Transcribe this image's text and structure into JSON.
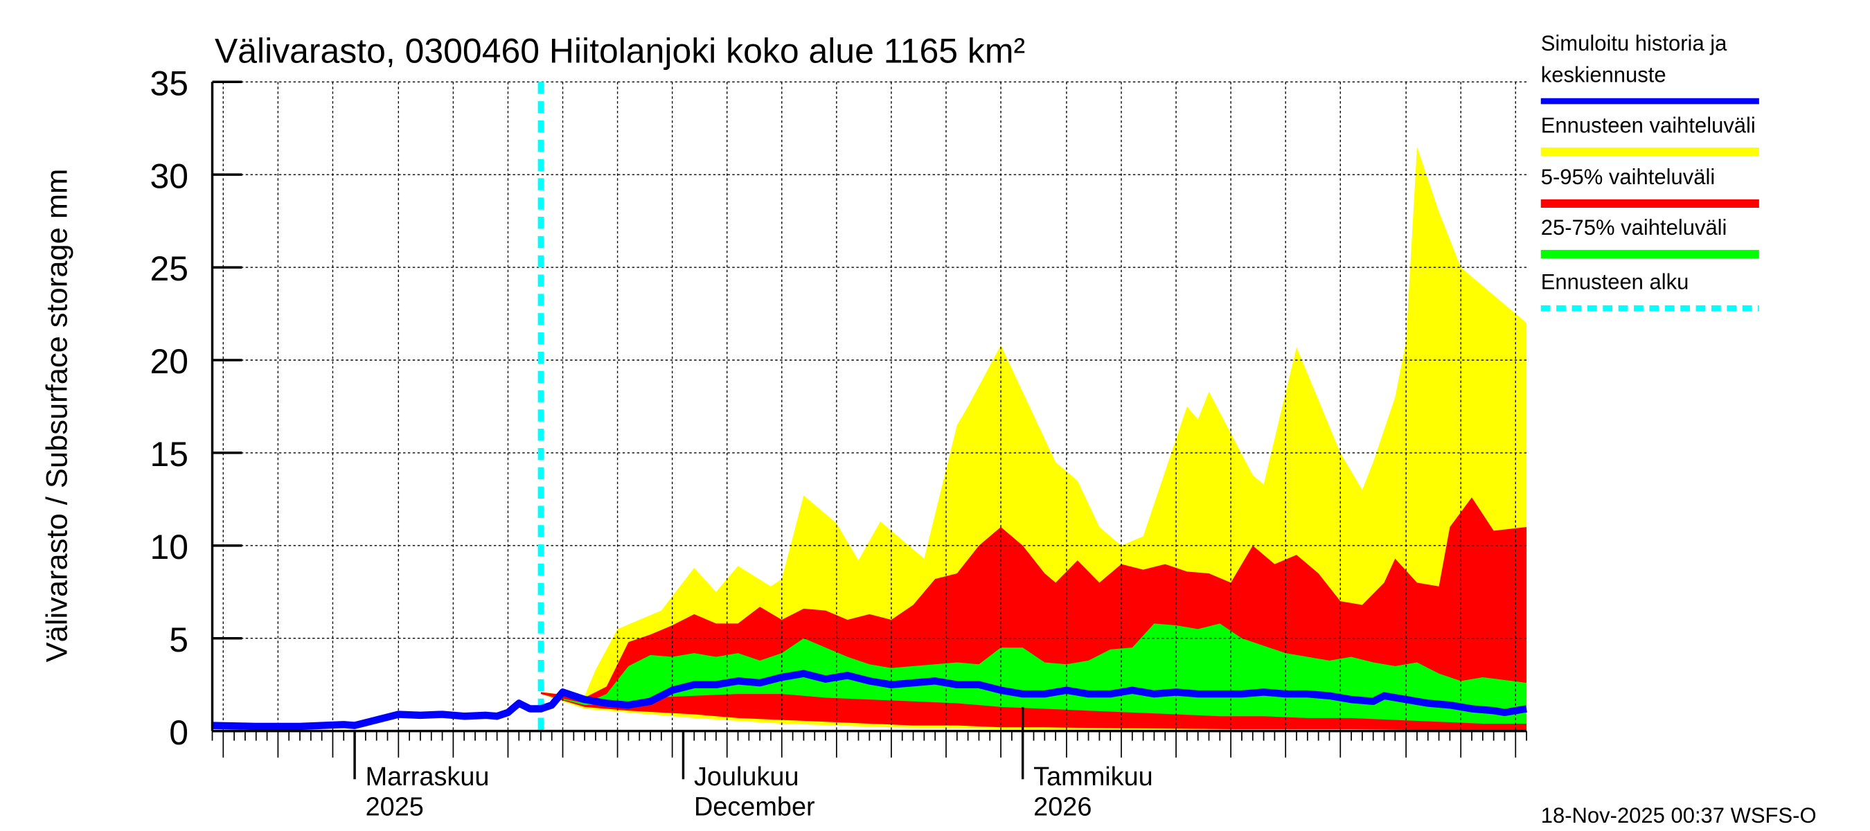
{
  "chart_data": {
    "type": "area",
    "title": "Välivarasto, 0300460 Hiitolanjoki koko alue 1165 km²",
    "ylabel": "Välivarasto / Subsurface storage  mm",
    "xlabel": "",
    "ylim": [
      0,
      35
    ],
    "yticks": [
      0,
      5,
      10,
      15,
      20,
      25,
      30,
      35
    ],
    "xlim": [
      "2025-10-19",
      "2026-02-16"
    ],
    "grid": true,
    "legend_position": "right",
    "x_tick_labels": [
      {
        "date": "2025-11-01",
        "line1": "Marraskuu",
        "line2": "2025"
      },
      {
        "date": "2025-12-01",
        "line1": "Joulukuu",
        "line2": "December"
      },
      {
        "date": "2026-01-01",
        "line1": "Tammikuu",
        "line2": "2026"
      }
    ],
    "forecast_start": "2025-11-18",
    "colors": {
      "median": "#0000ff",
      "full_range": "#ffff00",
      "p5_95": "#ff0000",
      "p25_75": "#00ff00",
      "forecast_start": "#00ffff"
    },
    "legend": [
      {
        "key": "median",
        "label_lines": [
          "Simuloitu historia ja",
          "keskiennuste"
        ]
      },
      {
        "key": "full_range",
        "label_lines": [
          "Ennusteen vaihteluväli"
        ]
      },
      {
        "key": "p5_95",
        "label_lines": [
          "5-95% vaihteluväli"
        ]
      },
      {
        "key": "p25_75",
        "label_lines": [
          "25-75% vaihteluväli"
        ]
      },
      {
        "key": "forecast_start",
        "label_lines": [
          "Ennusteen alku"
        ]
      }
    ],
    "bands": {
      "full_range": {
        "upper": [
          [
            "2025-11-18",
            2.1
          ],
          [
            "2025-11-20",
            2.0
          ],
          [
            "2025-11-22",
            1.9
          ],
          [
            "2025-11-23",
            3.3
          ],
          [
            "2025-11-25",
            5.5
          ],
          [
            "2025-11-27",
            6.0
          ],
          [
            "2025-11-29",
            6.5
          ],
          [
            "2025-12-02",
            8.8
          ],
          [
            "2025-12-04",
            7.5
          ],
          [
            "2025-12-06",
            8.9
          ],
          [
            "2025-12-09",
            7.8
          ],
          [
            "2025-12-10",
            8.2
          ],
          [
            "2025-12-12",
            12.7
          ],
          [
            "2025-12-15",
            11.2
          ],
          [
            "2025-12-17",
            9.2
          ],
          [
            "2025-12-19",
            11.3
          ],
          [
            "2025-12-23",
            9.3
          ],
          [
            "2025-12-26",
            16.5
          ],
          [
            "2025-12-27",
            17.5
          ],
          [
            "2025-12-30",
            20.8
          ],
          [
            "2026-01-04",
            14.5
          ],
          [
            "2026-01-06",
            13.5
          ],
          [
            "2026-01-08",
            11.0
          ],
          [
            "2026-01-10",
            10.0
          ],
          [
            "2026-01-12",
            10.5
          ],
          [
            "2026-01-16",
            17.5
          ],
          [
            "2026-01-17",
            16.8
          ],
          [
            "2026-01-18",
            18.3
          ],
          [
            "2026-01-22",
            13.8
          ],
          [
            "2026-01-23",
            13.3
          ],
          [
            "2026-01-26",
            20.7
          ],
          [
            "2026-01-30",
            15.0
          ],
          [
            "2026-02-01",
            13.0
          ],
          [
            "2026-02-02",
            14.5
          ],
          [
            "2026-02-04",
            18.0
          ],
          [
            "2026-02-05",
            21.0
          ],
          [
            "2026-02-06",
            31.5
          ],
          [
            "2026-02-08",
            28.0
          ],
          [
            "2026-02-10",
            25.0
          ],
          [
            "2026-02-16",
            22.0
          ]
        ],
        "lower": [
          [
            "2025-11-18",
            2.0
          ],
          [
            "2025-11-22",
            1.2
          ],
          [
            "2025-11-26",
            1.0
          ],
          [
            "2025-12-02",
            0.7
          ],
          [
            "2025-12-10",
            0.4
          ],
          [
            "2025-12-20",
            0.2
          ],
          [
            "2025-12-30",
            0.1
          ],
          [
            "2026-01-10",
            0.05
          ],
          [
            "2026-02-16",
            0.0
          ]
        ]
      },
      "p5_95": {
        "upper": [
          [
            "2025-11-18",
            2.1
          ],
          [
            "2025-11-22",
            1.8
          ],
          [
            "2025-11-24",
            2.4
          ],
          [
            "2025-11-26",
            4.8
          ],
          [
            "2025-11-28",
            5.2
          ],
          [
            "2025-11-30",
            5.7
          ],
          [
            "2025-12-02",
            6.3
          ],
          [
            "2025-12-04",
            5.8
          ],
          [
            "2025-12-06",
            5.8
          ],
          [
            "2025-12-08",
            6.7
          ],
          [
            "2025-12-10",
            6.0
          ],
          [
            "2025-12-12",
            6.6
          ],
          [
            "2025-12-14",
            6.5
          ],
          [
            "2025-12-16",
            6.0
          ],
          [
            "2025-12-18",
            6.3
          ],
          [
            "2025-12-20",
            6.0
          ],
          [
            "2025-12-22",
            6.8
          ],
          [
            "2025-12-24",
            8.2
          ],
          [
            "2025-12-26",
            8.5
          ],
          [
            "2025-12-28",
            10.0
          ],
          [
            "2025-12-30",
            11.0
          ],
          [
            "2026-01-01",
            10.0
          ],
          [
            "2026-01-03",
            8.5
          ],
          [
            "2026-01-04",
            8.0
          ],
          [
            "2026-01-06",
            9.2
          ],
          [
            "2026-01-08",
            8.0
          ],
          [
            "2026-01-10",
            9.0
          ],
          [
            "2026-01-12",
            8.7
          ],
          [
            "2026-01-14",
            9.0
          ],
          [
            "2026-01-16",
            8.6
          ],
          [
            "2026-01-18",
            8.5
          ],
          [
            "2026-01-20",
            8.0
          ],
          [
            "2026-01-22",
            10.0
          ],
          [
            "2026-01-24",
            9.0
          ],
          [
            "2026-01-26",
            9.5
          ],
          [
            "2026-01-28",
            8.5
          ],
          [
            "2026-01-30",
            7.0
          ],
          [
            "2026-02-01",
            6.8
          ],
          [
            "2026-02-03",
            8.0
          ],
          [
            "2026-02-04",
            9.3
          ],
          [
            "2026-02-06",
            8.0
          ],
          [
            "2026-02-08",
            7.8
          ],
          [
            "2026-02-09",
            11.0
          ],
          [
            "2026-02-11",
            12.6
          ],
          [
            "2026-02-13",
            10.8
          ],
          [
            "2026-02-16",
            11.0
          ]
        ],
        "lower": [
          [
            "2025-11-18",
            2.0
          ],
          [
            "2025-11-22",
            1.3
          ],
          [
            "2025-11-26",
            1.1
          ],
          [
            "2025-12-02",
            0.9
          ],
          [
            "2025-12-06",
            0.7
          ],
          [
            "2025-12-10",
            0.6
          ],
          [
            "2025-12-14",
            0.5
          ],
          [
            "2025-12-18",
            0.4
          ],
          [
            "2025-12-22",
            0.3
          ],
          [
            "2025-12-26",
            0.3
          ],
          [
            "2025-12-30",
            0.2
          ],
          [
            "2026-01-03",
            0.2
          ],
          [
            "2026-01-10",
            0.15
          ],
          [
            "2026-01-20",
            0.1
          ],
          [
            "2026-01-31",
            0.1
          ],
          [
            "2026-02-08",
            0.05
          ],
          [
            "2026-02-16",
            0.05
          ]
        ]
      },
      "p25_75": {
        "upper": [
          [
            "2025-11-18",
            2.0
          ],
          [
            "2025-11-22",
            1.5
          ],
          [
            "2025-11-24",
            2.0
          ],
          [
            "2025-11-26",
            3.5
          ],
          [
            "2025-11-28",
            4.1
          ],
          [
            "2025-11-30",
            4.0
          ],
          [
            "2025-12-02",
            4.2
          ],
          [
            "2025-12-04",
            4.0
          ],
          [
            "2025-12-06",
            4.2
          ],
          [
            "2025-12-08",
            3.8
          ],
          [
            "2025-12-10",
            4.2
          ],
          [
            "2025-12-12",
            5.0
          ],
          [
            "2025-12-14",
            4.5
          ],
          [
            "2025-12-16",
            4.0
          ],
          [
            "2025-12-18",
            3.6
          ],
          [
            "2025-12-20",
            3.4
          ],
          [
            "2025-12-22",
            3.5
          ],
          [
            "2025-12-24",
            3.6
          ],
          [
            "2025-12-26",
            3.7
          ],
          [
            "2025-12-28",
            3.6
          ],
          [
            "2025-12-30",
            4.5
          ],
          [
            "2026-01-01",
            4.5
          ],
          [
            "2026-01-03",
            3.7
          ],
          [
            "2026-01-05",
            3.6
          ],
          [
            "2026-01-07",
            3.8
          ],
          [
            "2026-01-09",
            4.4
          ],
          [
            "2026-01-11",
            4.5
          ],
          [
            "2026-01-13",
            5.8
          ],
          [
            "2026-01-15",
            5.7
          ],
          [
            "2026-01-17",
            5.5
          ],
          [
            "2026-01-19",
            5.8
          ],
          [
            "2026-01-21",
            5.0
          ],
          [
            "2026-01-23",
            4.6
          ],
          [
            "2026-01-25",
            4.2
          ],
          [
            "2026-01-27",
            4.0
          ],
          [
            "2026-01-29",
            3.8
          ],
          [
            "2026-01-31",
            4.0
          ],
          [
            "2026-02-02",
            3.7
          ],
          [
            "2026-02-04",
            3.5
          ],
          [
            "2026-02-06",
            3.7
          ],
          [
            "2026-02-08",
            3.1
          ],
          [
            "2026-02-10",
            2.7
          ],
          [
            "2026-02-12",
            2.9
          ],
          [
            "2026-02-16",
            2.6
          ]
        ],
        "lower": [
          [
            "2025-11-18",
            2.0
          ],
          [
            "2025-11-22",
            1.4
          ],
          [
            "2025-11-26",
            1.5
          ],
          [
            "2025-11-28",
            1.8
          ],
          [
            "2025-12-02",
            1.9
          ],
          [
            "2025-12-06",
            2.0
          ],
          [
            "2025-12-10",
            2.0
          ],
          [
            "2025-12-14",
            1.8
          ],
          [
            "2025-12-18",
            1.7
          ],
          [
            "2025-12-22",
            1.6
          ],
          [
            "2025-12-26",
            1.5
          ],
          [
            "2025-12-30",
            1.3
          ],
          [
            "2026-01-03",
            1.2
          ],
          [
            "2026-01-07",
            1.1
          ],
          [
            "2026-01-11",
            1.0
          ],
          [
            "2026-01-15",
            0.9
          ],
          [
            "2026-01-19",
            0.8
          ],
          [
            "2026-01-23",
            0.8
          ],
          [
            "2026-01-27",
            0.7
          ],
          [
            "2026-01-31",
            0.7
          ],
          [
            "2026-02-04",
            0.6
          ],
          [
            "2026-02-08",
            0.5
          ],
          [
            "2026-02-12",
            0.4
          ],
          [
            "2026-02-16",
            0.4
          ]
        ]
      }
    },
    "median": [
      [
        "2025-10-19",
        0.3
      ],
      [
        "2025-10-23",
        0.25
      ],
      [
        "2025-10-27",
        0.25
      ],
      [
        "2025-10-31",
        0.35
      ],
      [
        "2025-11-01",
        0.3
      ],
      [
        "2025-11-03",
        0.6
      ],
      [
        "2025-11-05",
        0.9
      ],
      [
        "2025-11-07",
        0.85
      ],
      [
        "2025-11-09",
        0.9
      ],
      [
        "2025-11-11",
        0.8
      ],
      [
        "2025-11-13",
        0.85
      ],
      [
        "2025-11-14",
        0.8
      ],
      [
        "2025-11-15",
        1.0
      ],
      [
        "2025-11-16",
        1.5
      ],
      [
        "2025-11-17",
        1.2
      ],
      [
        "2025-11-18",
        1.2
      ],
      [
        "2025-11-19",
        1.4
      ],
      [
        "2025-11-20",
        2.1
      ],
      [
        "2025-11-22",
        1.7
      ],
      [
        "2025-11-24",
        1.5
      ],
      [
        "2025-11-26",
        1.4
      ],
      [
        "2025-11-28",
        1.6
      ],
      [
        "2025-11-30",
        2.2
      ],
      [
        "2025-12-02",
        2.5
      ],
      [
        "2025-12-04",
        2.5
      ],
      [
        "2025-12-06",
        2.7
      ],
      [
        "2025-12-08",
        2.6
      ],
      [
        "2025-12-10",
        2.9
      ],
      [
        "2025-12-12",
        3.1
      ],
      [
        "2025-12-14",
        2.8
      ],
      [
        "2025-12-16",
        3.0
      ],
      [
        "2025-12-18",
        2.7
      ],
      [
        "2025-12-20",
        2.5
      ],
      [
        "2025-12-22",
        2.6
      ],
      [
        "2025-12-24",
        2.7
      ],
      [
        "2025-12-26",
        2.5
      ],
      [
        "2025-12-28",
        2.5
      ],
      [
        "2025-12-30",
        2.2
      ],
      [
        "2026-01-01",
        2.0
      ],
      [
        "2026-01-03",
        2.0
      ],
      [
        "2026-01-05",
        2.2
      ],
      [
        "2026-01-07",
        2.0
      ],
      [
        "2026-01-09",
        2.0
      ],
      [
        "2026-01-11",
        2.2
      ],
      [
        "2026-01-13",
        2.0
      ],
      [
        "2026-01-15",
        2.1
      ],
      [
        "2026-01-17",
        2.0
      ],
      [
        "2026-01-19",
        2.0
      ],
      [
        "2026-01-21",
        2.0
      ],
      [
        "2026-01-23",
        2.1
      ],
      [
        "2026-01-25",
        2.0
      ],
      [
        "2026-01-27",
        2.0
      ],
      [
        "2026-01-29",
        1.9
      ],
      [
        "2026-01-31",
        1.7
      ],
      [
        "2026-02-02",
        1.6
      ],
      [
        "2026-02-03",
        1.9
      ],
      [
        "2026-02-05",
        1.7
      ],
      [
        "2026-02-07",
        1.5
      ],
      [
        "2026-02-09",
        1.4
      ],
      [
        "2026-02-11",
        1.2
      ],
      [
        "2026-02-13",
        1.1
      ],
      [
        "2026-02-14",
        1.0
      ],
      [
        "2026-02-16",
        1.2
      ]
    ]
  },
  "footer": {
    "timestamp": "18-Nov-2025 00:37 WSFS-O"
  }
}
